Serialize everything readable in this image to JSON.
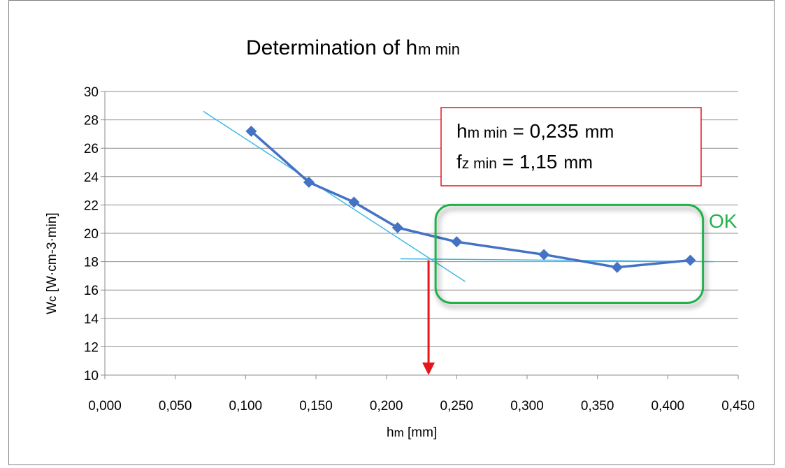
{
  "chart_data": {
    "type": "line",
    "title": {
      "main": "Determination  of h",
      "sub": "m min"
    },
    "xlabel": {
      "main": "h",
      "sub": "m",
      "unit": " [mm]"
    },
    "ylabel": {
      "main": "W",
      "sub": "c",
      "unit": "  [W·cm-3·min]"
    },
    "xlim": [
      0.0,
      0.45
    ],
    "ylim": [
      10,
      30
    ],
    "x_ticks": [
      0.0,
      0.05,
      0.1,
      0.15,
      0.2,
      0.25,
      0.3,
      0.35,
      0.4,
      0.45
    ],
    "x_tick_labels": [
      "0,000",
      "0,050",
      "0,100",
      "0,150",
      "0,200",
      "0,250",
      "0,300",
      "0,350",
      "0,400",
      "0,450"
    ],
    "y_ticks": [
      10,
      12,
      14,
      16,
      18,
      20,
      22,
      24,
      26,
      28,
      30
    ],
    "y_tick_labels": [
      "10",
      "12",
      "14",
      "16",
      "18",
      "20",
      "22",
      "24",
      "26",
      "28",
      "30"
    ],
    "grid": true,
    "legend": "none",
    "series": [
      {
        "color": "#4472c4",
        "marker": "diamond",
        "x": [
          0.104,
          0.145,
          0.177,
          0.208,
          0.25,
          0.312,
          0.364,
          0.416
        ],
        "y": [
          27.2,
          23.6,
          22.2,
          20.4,
          19.4,
          18.5,
          17.6,
          18.1
        ]
      }
    ],
    "trend_lines": [
      {
        "color": "#3cb8e8",
        "x": [
          0.07,
          0.256
        ],
        "y": [
          28.6,
          16.6
        ]
      },
      {
        "color": "#3cb8e8",
        "x": [
          0.21,
          0.433
        ],
        "y": [
          18.2,
          18.0
        ]
      }
    ],
    "marker_arrow": {
      "color": "#e8131b",
      "x": 0.23,
      "y_from": 18.1,
      "y_to": 10.1
    },
    "annotation_box": {
      "border_color": "#e8131b",
      "line1": {
        "main": "h",
        "sub": "m min",
        "value": " = 0,235",
        "unit": " mm"
      },
      "line2": {
        "main": "f",
        "sub": "z min",
        "value": " = 1,15",
        "unit": " mm"
      }
    },
    "ok_region": {
      "color": "#22b14c",
      "label": "OK",
      "x_range": [
        0.235,
        0.425
      ],
      "y_range": [
        15.1,
        22.0
      ]
    }
  }
}
